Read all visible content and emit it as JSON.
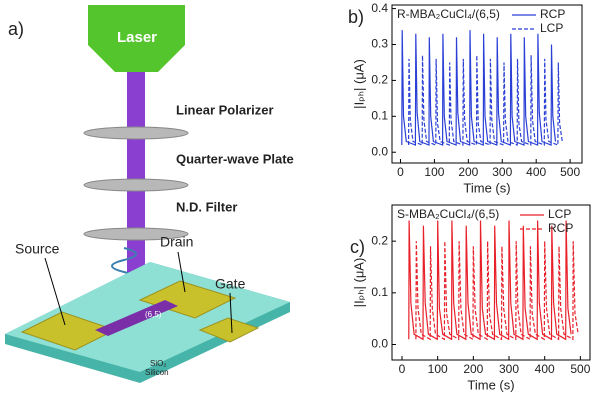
{
  "diagram": {
    "panel_label": "a)",
    "laser": "Laser",
    "polarizer": "Linear Polarizer",
    "waveplate": "Quarter-wave Plate",
    "filter": "N.D. Filter",
    "source": "Source",
    "drain": "Drain",
    "gate": "Gate",
    "sio2": "SiO₂",
    "silicon": "Silicon",
    "channel": "(6,5)"
  },
  "chart_data": [
    {
      "type": "line",
      "panel_label": "b)",
      "annotation": "R-MBA₂CuCl₄/(6,5)",
      "x_label": "Time (s)",
      "y_label": "|Iₚₕ| (μA)",
      "xlim": [
        -25,
        535
      ],
      "ylim": [
        -0.03,
        0.41
      ],
      "xticks": [
        0,
        100,
        200,
        300,
        400,
        500
      ],
      "yticks": [
        {
          "value": 0,
          "label": "0.0"
        },
        0.1,
        0.2,
        0.3,
        0.4
      ],
      "legend": "upper right",
      "series": [
        {
          "name": "RCP",
          "color": "#2a3fd6",
          "dash": "solid",
          "x": [
            4,
            5,
            9,
            17,
            44,
            45,
            49,
            57,
            84,
            85,
            89,
            97,
            124,
            125,
            129,
            137,
            164,
            165,
            169,
            177,
            204,
            205,
            209,
            217,
            244,
            245,
            249,
            257,
            284,
            285,
            289,
            297,
            324,
            325,
            329,
            337,
            364,
            365,
            369,
            377,
            404,
            405,
            409,
            417,
            444,
            445,
            449,
            457
          ],
          "values": [
            0.02,
            0.34,
            0.1,
            0.03,
            0.02,
            0.33,
            0.11,
            0.03,
            0.02,
            0.32,
            0.1,
            0.03,
            0.02,
            0.33,
            0.1,
            0.03,
            0.02,
            0.32,
            0.11,
            0.03,
            0.02,
            0.34,
            0.1,
            0.03,
            0.02,
            0.33,
            0.1,
            0.03,
            0.02,
            0.32,
            0.11,
            0.03,
            0.02,
            0.33,
            0.1,
            0.03,
            0.02,
            0.32,
            0.1,
            0.03,
            0.02,
            0.33,
            0.11,
            0.03,
            0.02,
            0.3,
            0.1,
            0.03
          ]
        },
        {
          "name": "LCP",
          "color": "#2a3fd6",
          "dash": "dashed",
          "x": [
            24,
            25,
            29,
            37,
            64,
            65,
            69,
            77,
            104,
            105,
            109,
            117,
            144,
            145,
            149,
            157,
            184,
            185,
            189,
            197,
            224,
            225,
            229,
            237,
            264,
            265,
            269,
            277,
            304,
            305,
            309,
            317,
            344,
            345,
            349,
            357,
            384,
            385,
            389,
            397,
            424,
            425,
            429,
            437,
            464,
            465,
            469,
            477
          ],
          "values": [
            0.02,
            0.26,
            0.09,
            0.03,
            0.02,
            0.27,
            0.09,
            0.03,
            0.02,
            0.26,
            0.08,
            0.03,
            0.02,
            0.25,
            0.09,
            0.03,
            0.02,
            0.26,
            0.09,
            0.03,
            0.02,
            0.27,
            0.08,
            0.03,
            0.02,
            0.26,
            0.09,
            0.03,
            0.02,
            0.25,
            0.09,
            0.03,
            0.02,
            0.26,
            0.08,
            0.03,
            0.02,
            0.27,
            0.09,
            0.03,
            0.02,
            0.26,
            0.09,
            0.03,
            0.02,
            0.25,
            0.08,
            0.03
          ]
        }
      ]
    },
    {
      "type": "line",
      "panel_label": "c)",
      "annotation": "S-MBA₂CuCl₄/(6,5)",
      "x_label": "Time (s)",
      "y_label": "|Iₚₕ| (μA)",
      "xlim": [
        -28,
        527
      ],
      "ylim": [
        -0.03,
        0.27
      ],
      "xticks": [
        0,
        100,
        200,
        300,
        400,
        500
      ],
      "yticks": [
        {
          "value": 0,
          "label": "0.0"
        },
        0.1,
        0.2
      ],
      "legend": "upper right",
      "series": [
        {
          "name": "LCP",
          "color": "#e8202a",
          "dash": "solid",
          "x": [
            19,
            20,
            25,
            34,
            59,
            60,
            65,
            74,
            99,
            100,
            105,
            114,
            139,
            140,
            145,
            154,
            179,
            180,
            185,
            194,
            219,
            220,
            225,
            234,
            259,
            260,
            265,
            274,
            299,
            300,
            305,
            314,
            339,
            340,
            345,
            354,
            379,
            380,
            385,
            394,
            419,
            420,
            425,
            434,
            459,
            460,
            465,
            474
          ],
          "values": [
            0.01,
            0.24,
            0.08,
            0.02,
            0.01,
            0.23,
            0.08,
            0.02,
            0.01,
            0.24,
            0.07,
            0.02,
            0.01,
            0.24,
            0.08,
            0.02,
            0.01,
            0.23,
            0.08,
            0.02,
            0.01,
            0.24,
            0.07,
            0.02,
            0.01,
            0.23,
            0.08,
            0.02,
            0.01,
            0.24,
            0.08,
            0.02,
            0.01,
            0.23,
            0.07,
            0.02,
            0.01,
            0.24,
            0.08,
            0.02,
            0.01,
            0.23,
            0.08,
            0.02,
            0.01,
            0.24,
            0.07,
            0.02
          ]
        },
        {
          "name": "RCP",
          "color": "#e8202a",
          "dash": "dashed",
          "x": [
            39,
            40,
            45,
            54,
            79,
            80,
            85,
            94,
            119,
            120,
            125,
            134,
            159,
            160,
            165,
            174,
            199,
            200,
            205,
            214,
            239,
            240,
            245,
            254,
            279,
            280,
            285,
            294,
            319,
            320,
            325,
            334,
            359,
            360,
            365,
            374,
            399,
            400,
            405,
            414,
            439,
            440,
            445,
            454,
            479,
            480,
            485,
            494
          ],
          "values": [
            0.01,
            0.2,
            0.07,
            0.02,
            0.01,
            0.19,
            0.07,
            0.02,
            0.01,
            0.2,
            0.06,
            0.02,
            0.01,
            0.2,
            0.07,
            0.02,
            0.01,
            0.19,
            0.07,
            0.02,
            0.01,
            0.2,
            0.06,
            0.02,
            0.01,
            0.19,
            0.07,
            0.02,
            0.01,
            0.2,
            0.07,
            0.02,
            0.01,
            0.19,
            0.06,
            0.02,
            0.01,
            0.2,
            0.07,
            0.02,
            0.01,
            0.19,
            0.07,
            0.02,
            0.01,
            0.2,
            0.06,
            0.02
          ]
        }
      ]
    }
  ]
}
